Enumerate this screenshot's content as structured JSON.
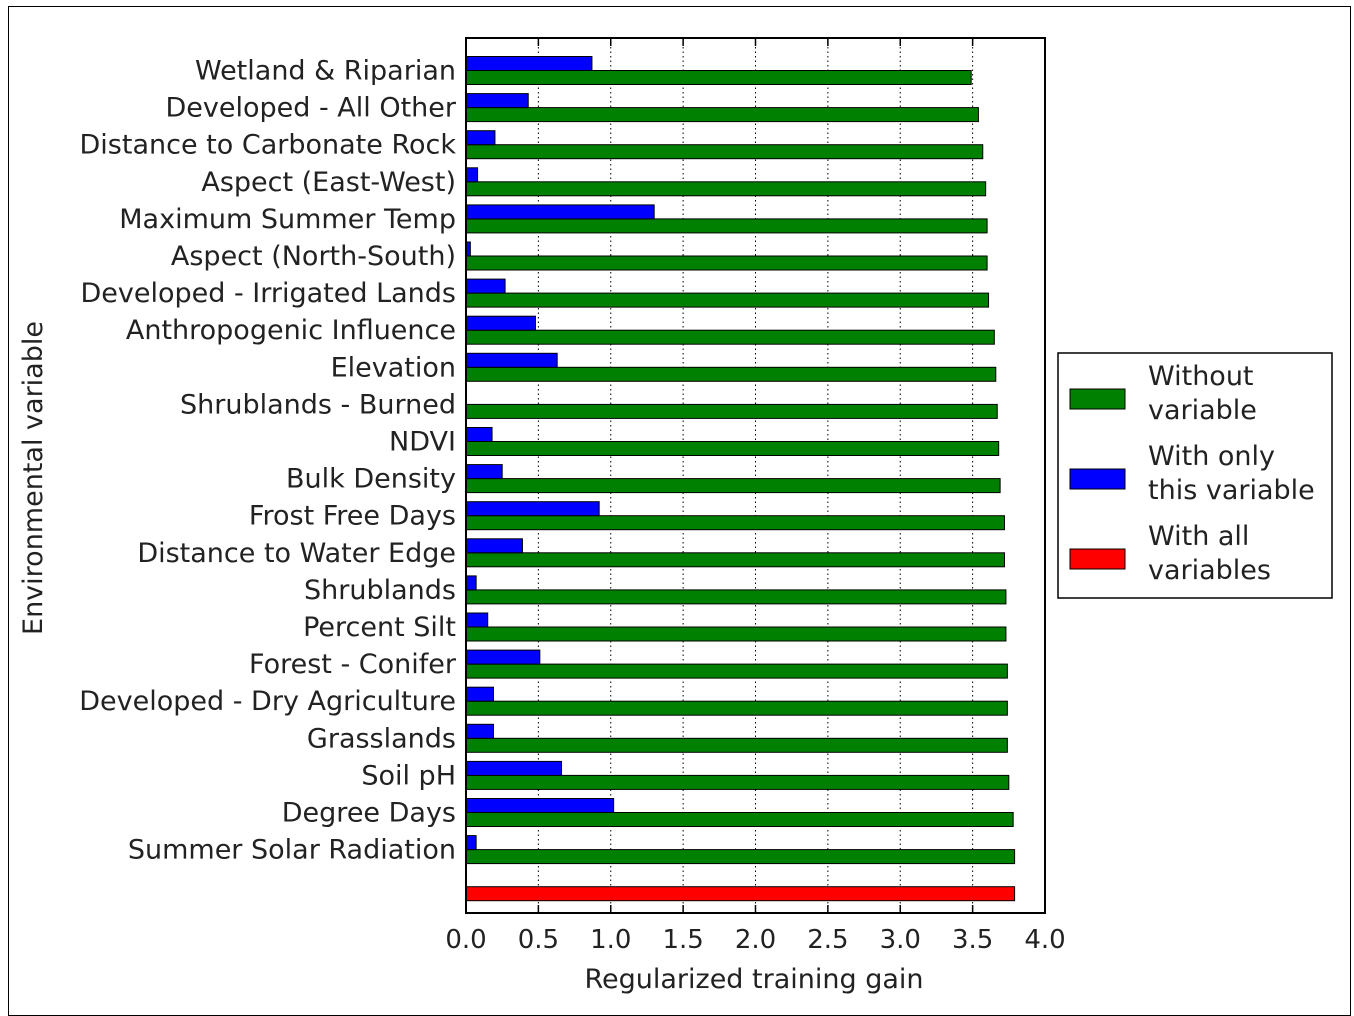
{
  "chart_data": {
    "type": "bar",
    "orientation": "horizontal",
    "xlabel": "Regularized training gain",
    "ylabel": "Environmental variable",
    "xlim": [
      0.0,
      4.0
    ],
    "xticks": [
      "0.0",
      "0.5",
      "1.0",
      "1.5",
      "2.0",
      "2.5",
      "3.0",
      "3.5",
      "4.0"
    ],
    "grid": "vertical dotted",
    "legend_position": "right",
    "categories": [
      "Wetland & Riparian",
      "Developed - All Other",
      "Distance to Carbonate Rock",
      "Aspect (East-West)",
      "Maximum Summer Temp",
      "Aspect (North-South)",
      "Developed - Irrigated Lands",
      "Anthropogenic Influence",
      "Elevation",
      "Shrublands - Burned",
      "NDVI",
      "Bulk Density",
      "Frost Free Days",
      "Distance to Water Edge",
      "Shrublands",
      "Percent Silt",
      "Forest - Conifer",
      "Developed - Dry Agriculture",
      "Grasslands",
      "Soil pH",
      "Degree Days",
      "Summer Solar Radiation"
    ],
    "series": [
      {
        "name": "Without variable",
        "color": "#008000",
        "values": [
          3.49,
          3.54,
          3.57,
          3.59,
          3.6,
          3.6,
          3.61,
          3.65,
          3.66,
          3.67,
          3.68,
          3.69,
          3.72,
          3.72,
          3.73,
          3.73,
          3.74,
          3.74,
          3.74,
          3.75,
          3.78,
          3.79
        ]
      },
      {
        "name": "With only this variable",
        "color": "#0000ff",
        "values": [
          0.87,
          0.43,
          0.2,
          0.08,
          1.3,
          0.03,
          0.27,
          0.48,
          0.63,
          0.0,
          0.18,
          0.25,
          0.92,
          0.39,
          0.07,
          0.15,
          0.51,
          0.19,
          0.19,
          0.66,
          1.02,
          0.07
        ]
      },
      {
        "name": "With all variables",
        "color": "#ff0000",
        "value": 3.79
      }
    ],
    "legend": [
      {
        "line1": "Without",
        "line2": "variable",
        "color": "#008000"
      },
      {
        "line1": "With only",
        "line2": "this variable",
        "color": "#0000ff"
      },
      {
        "line1": "With all",
        "line2": "variables",
        "color": "#ff0000"
      }
    ]
  }
}
